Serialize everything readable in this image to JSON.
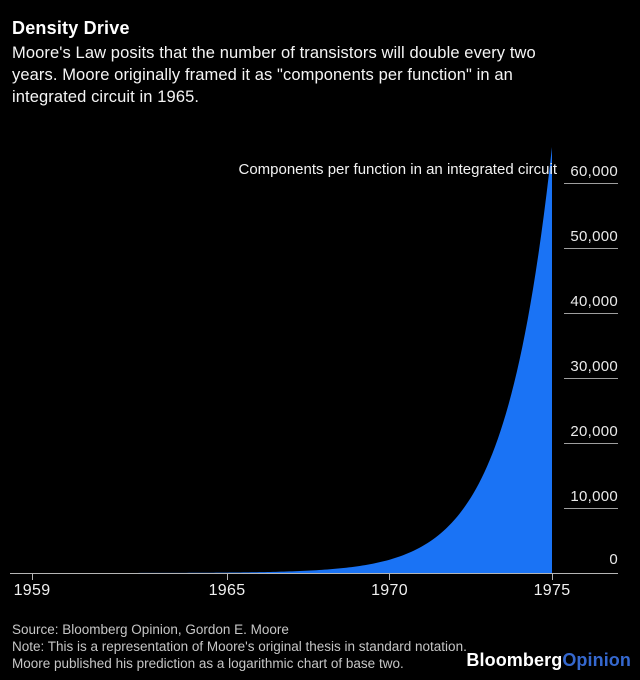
{
  "header": {
    "title": "Density Drive",
    "subtitle_lines": [
      "Moore's Law posits that the number of transistors will double every two",
      "years. Moore originally framed it as \"components per function\" in an",
      "integrated circuit in 1965."
    ]
  },
  "chart_data": {
    "type": "area",
    "title": "Density Drive",
    "series_label": "Components per function in an integrated circuit",
    "x": [
      1959,
      1960,
      1961,
      1962,
      1963,
      1964,
      1965,
      1966,
      1967,
      1968,
      1969,
      1970,
      1971,
      1972,
      1973,
      1974,
      1975
    ],
    "values": [
      1,
      2,
      4,
      8,
      16,
      32,
      64,
      128,
      256,
      512,
      1024,
      2048,
      4096,
      8192,
      16384,
      32768,
      65536
    ],
    "x_ticks": [
      1959,
      1965,
      1970,
      1975
    ],
    "x_tick_labels": [
      "1959",
      "1965",
      "1970",
      "1975"
    ],
    "y_ticks": [
      0,
      10000,
      20000,
      30000,
      40000,
      50000,
      60000
    ],
    "y_tick_labels": [
      "0",
      "10,000",
      "20,000",
      "30,000",
      "40,000",
      "50,000",
      "60,000"
    ],
    "xlim": [
      1959,
      1975
    ],
    "ylim": [
      0,
      60000
    ],
    "grid": "right-side tick underlines only",
    "legend_position": "none",
    "interpolation": "exponential",
    "area_color": "#1a73f5"
  },
  "footer": {
    "source": "Source: Bloomberg Opinion, Gordon E. Moore",
    "note_lines": [
      "Note: This is a representation of Moore's original thesis in standard notation.",
      "Moore published his prediction as a logarithmic chart of base two."
    ],
    "logo_bloomberg": "Bloomberg",
    "logo_opinion": "Opinion"
  }
}
